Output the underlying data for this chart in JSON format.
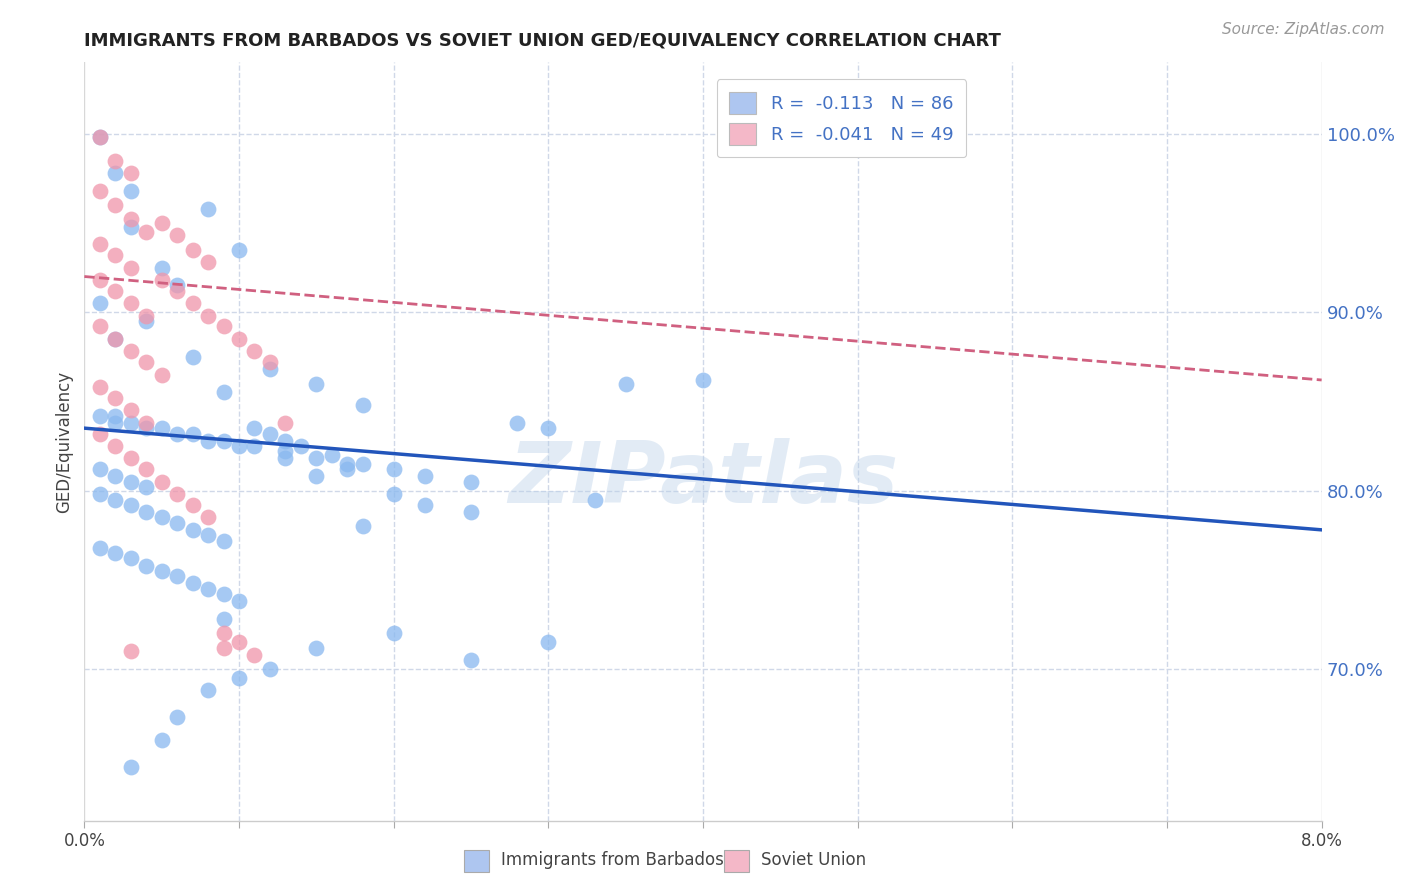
{
  "title": "IMMIGRANTS FROM BARBADOS VS SOVIET UNION GED/EQUIVALENCY CORRELATION CHART",
  "source": "Source: ZipAtlas.com",
  "ylabel": "GED/Equivalency",
  "ytick_vals": [
    0.7,
    0.8,
    0.9,
    1.0
  ],
  "xlim": [
    0.0,
    0.08
  ],
  "ylim": [
    0.615,
    1.04
  ],
  "legend_label1": "R =  -0.113   N = 86",
  "legend_label2": "R =  -0.041   N = 49",
  "legend_color1": "#aec6f0",
  "legend_color2": "#f4b8c8",
  "scatter_color1": "#89b8ef",
  "scatter_color2": "#f095aa",
  "trendline_color1": "#2255bb",
  "trendline_color2": "#d06080",
  "watermark": "ZIPatlas",
  "background_color": "#ffffff",
  "blue_trend_x": [
    0.0,
    0.08
  ],
  "blue_trend_y": [
    0.835,
    0.778
  ],
  "pink_trend_x": [
    0.0,
    0.08
  ],
  "pink_trend_y": [
    0.92,
    0.862
  ],
  "blue_scatter": [
    [
      0.001,
      0.998
    ],
    [
      0.002,
      0.978
    ],
    [
      0.003,
      0.968
    ],
    [
      0.008,
      0.958
    ],
    [
      0.003,
      0.948
    ],
    [
      0.01,
      0.935
    ],
    [
      0.005,
      0.925
    ],
    [
      0.006,
      0.915
    ],
    [
      0.001,
      0.905
    ],
    [
      0.004,
      0.895
    ],
    [
      0.002,
      0.885
    ],
    [
      0.007,
      0.875
    ],
    [
      0.012,
      0.868
    ],
    [
      0.015,
      0.86
    ],
    [
      0.009,
      0.855
    ],
    [
      0.018,
      0.848
    ],
    [
      0.002,
      0.842
    ],
    [
      0.003,
      0.838
    ],
    [
      0.005,
      0.835
    ],
    [
      0.007,
      0.832
    ],
    [
      0.009,
      0.828
    ],
    [
      0.011,
      0.825
    ],
    [
      0.013,
      0.822
    ],
    [
      0.015,
      0.818
    ],
    [
      0.017,
      0.815
    ],
    [
      0.001,
      0.812
    ],
    [
      0.002,
      0.808
    ],
    [
      0.003,
      0.805
    ],
    [
      0.004,
      0.802
    ],
    [
      0.001,
      0.798
    ],
    [
      0.002,
      0.795
    ],
    [
      0.003,
      0.792
    ],
    [
      0.004,
      0.788
    ],
    [
      0.005,
      0.785
    ],
    [
      0.006,
      0.782
    ],
    [
      0.007,
      0.778
    ],
    [
      0.008,
      0.775
    ],
    [
      0.009,
      0.772
    ],
    [
      0.001,
      0.768
    ],
    [
      0.002,
      0.765
    ],
    [
      0.003,
      0.762
    ],
    [
      0.004,
      0.758
    ],
    [
      0.005,
      0.755
    ],
    [
      0.006,
      0.752
    ],
    [
      0.007,
      0.748
    ],
    [
      0.008,
      0.745
    ],
    [
      0.009,
      0.742
    ],
    [
      0.01,
      0.738
    ],
    [
      0.011,
      0.835
    ],
    [
      0.012,
      0.832
    ],
    [
      0.013,
      0.828
    ],
    [
      0.014,
      0.825
    ],
    [
      0.016,
      0.82
    ],
    [
      0.018,
      0.815
    ],
    [
      0.02,
      0.812
    ],
    [
      0.022,
      0.808
    ],
    [
      0.025,
      0.805
    ],
    [
      0.028,
      0.838
    ],
    [
      0.03,
      0.835
    ],
    [
      0.035,
      0.86
    ],
    [
      0.02,
      0.798
    ],
    [
      0.015,
      0.808
    ],
    [
      0.017,
      0.812
    ],
    [
      0.013,
      0.818
    ],
    [
      0.01,
      0.825
    ],
    [
      0.008,
      0.828
    ],
    [
      0.006,
      0.832
    ],
    [
      0.004,
      0.835
    ],
    [
      0.002,
      0.838
    ],
    [
      0.001,
      0.842
    ],
    [
      0.022,
      0.792
    ],
    [
      0.025,
      0.788
    ],
    [
      0.018,
      0.78
    ],
    [
      0.04,
      0.862
    ],
    [
      0.033,
      0.795
    ],
    [
      0.03,
      0.715
    ],
    [
      0.025,
      0.705
    ],
    [
      0.02,
      0.72
    ],
    [
      0.015,
      0.712
    ],
    [
      0.012,
      0.7
    ],
    [
      0.01,
      0.695
    ],
    [
      0.008,
      0.688
    ],
    [
      0.006,
      0.673
    ],
    [
      0.005,
      0.66
    ],
    [
      0.003,
      0.645
    ],
    [
      0.009,
      0.728
    ]
  ],
  "pink_scatter": [
    [
      0.001,
      0.998
    ],
    [
      0.002,
      0.985
    ],
    [
      0.003,
      0.978
    ],
    [
      0.001,
      0.968
    ],
    [
      0.002,
      0.96
    ],
    [
      0.003,
      0.952
    ],
    [
      0.004,
      0.945
    ],
    [
      0.001,
      0.938
    ],
    [
      0.002,
      0.932
    ],
    [
      0.003,
      0.925
    ],
    [
      0.001,
      0.918
    ],
    [
      0.002,
      0.912
    ],
    [
      0.003,
      0.905
    ],
    [
      0.004,
      0.898
    ],
    [
      0.001,
      0.892
    ],
    [
      0.002,
      0.885
    ],
    [
      0.003,
      0.878
    ],
    [
      0.004,
      0.872
    ],
    [
      0.005,
      0.865
    ],
    [
      0.001,
      0.858
    ],
    [
      0.002,
      0.852
    ],
    [
      0.003,
      0.845
    ],
    [
      0.004,
      0.838
    ],
    [
      0.001,
      0.832
    ],
    [
      0.002,
      0.825
    ],
    [
      0.003,
      0.818
    ],
    [
      0.004,
      0.812
    ],
    [
      0.005,
      0.805
    ],
    [
      0.006,
      0.798
    ],
    [
      0.007,
      0.792
    ],
    [
      0.008,
      0.785
    ],
    [
      0.005,
      0.918
    ],
    [
      0.006,
      0.912
    ],
    [
      0.007,
      0.905
    ],
    [
      0.008,
      0.898
    ],
    [
      0.009,
      0.892
    ],
    [
      0.01,
      0.885
    ],
    [
      0.011,
      0.878
    ],
    [
      0.012,
      0.872
    ],
    [
      0.013,
      0.838
    ],
    [
      0.005,
      0.95
    ],
    [
      0.006,
      0.943
    ],
    [
      0.007,
      0.935
    ],
    [
      0.008,
      0.928
    ],
    [
      0.009,
      0.72
    ],
    [
      0.009,
      0.712
    ],
    [
      0.003,
      0.71
    ],
    [
      0.01,
      0.715
    ],
    [
      0.011,
      0.708
    ]
  ]
}
